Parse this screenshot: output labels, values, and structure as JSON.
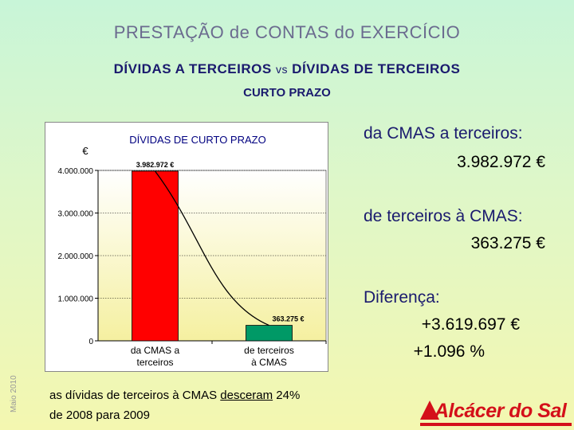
{
  "header": {
    "title": "PRESTAÇÃO de CONTAS do EXERCÍCIO",
    "subtitle_left": "DÍVIDAS A TERCEIROS",
    "subtitle_vs": "vs",
    "subtitle_right": "DÍVIDAS DE TERCEIROS",
    "term": "CURTO PRAZO"
  },
  "side_date": "Maio 2010",
  "chart_data": {
    "type": "bar",
    "title": "DÍVIDAS DE CURTO PRAZO",
    "unit_label": "€",
    "categories": [
      [
        "da CMAS  a",
        "terceiros"
      ],
      [
        "de terceiros",
        "à CMAS"
      ]
    ],
    "values": [
      3982972,
      363275
    ],
    "data_labels": [
      "3.982.972  €",
      "363.275  €"
    ],
    "bar_colors": [
      "#ff0000",
      "#009966"
    ],
    "ylim": [
      0,
      4000000
    ],
    "yticks": [
      0,
      1000000,
      2000000,
      3000000,
      4000000
    ],
    "ytick_labels": [
      "0",
      "1.000.000",
      "2.000.000",
      "3.000.000",
      "4.000.000"
    ],
    "grid": true,
    "trend_line": true
  },
  "summary": {
    "label_to_third": "da CMAS a terceiros:",
    "value_to_third": "3.982.972 €",
    "label_from_third": "de terceiros à CMAS:",
    "value_from_third": "363.275 €",
    "label_diff": "Diferença:",
    "value_diff": "+3.619.697 €",
    "value_diff_pct": "+1.096 %"
  },
  "note": {
    "pre": "as dívidas de terceiros à CMAS ",
    "underlined": "desceram",
    "post": " 24%",
    "line2": "de 2008 para 2009"
  },
  "logo": {
    "text": "Alcácer do Sal"
  }
}
